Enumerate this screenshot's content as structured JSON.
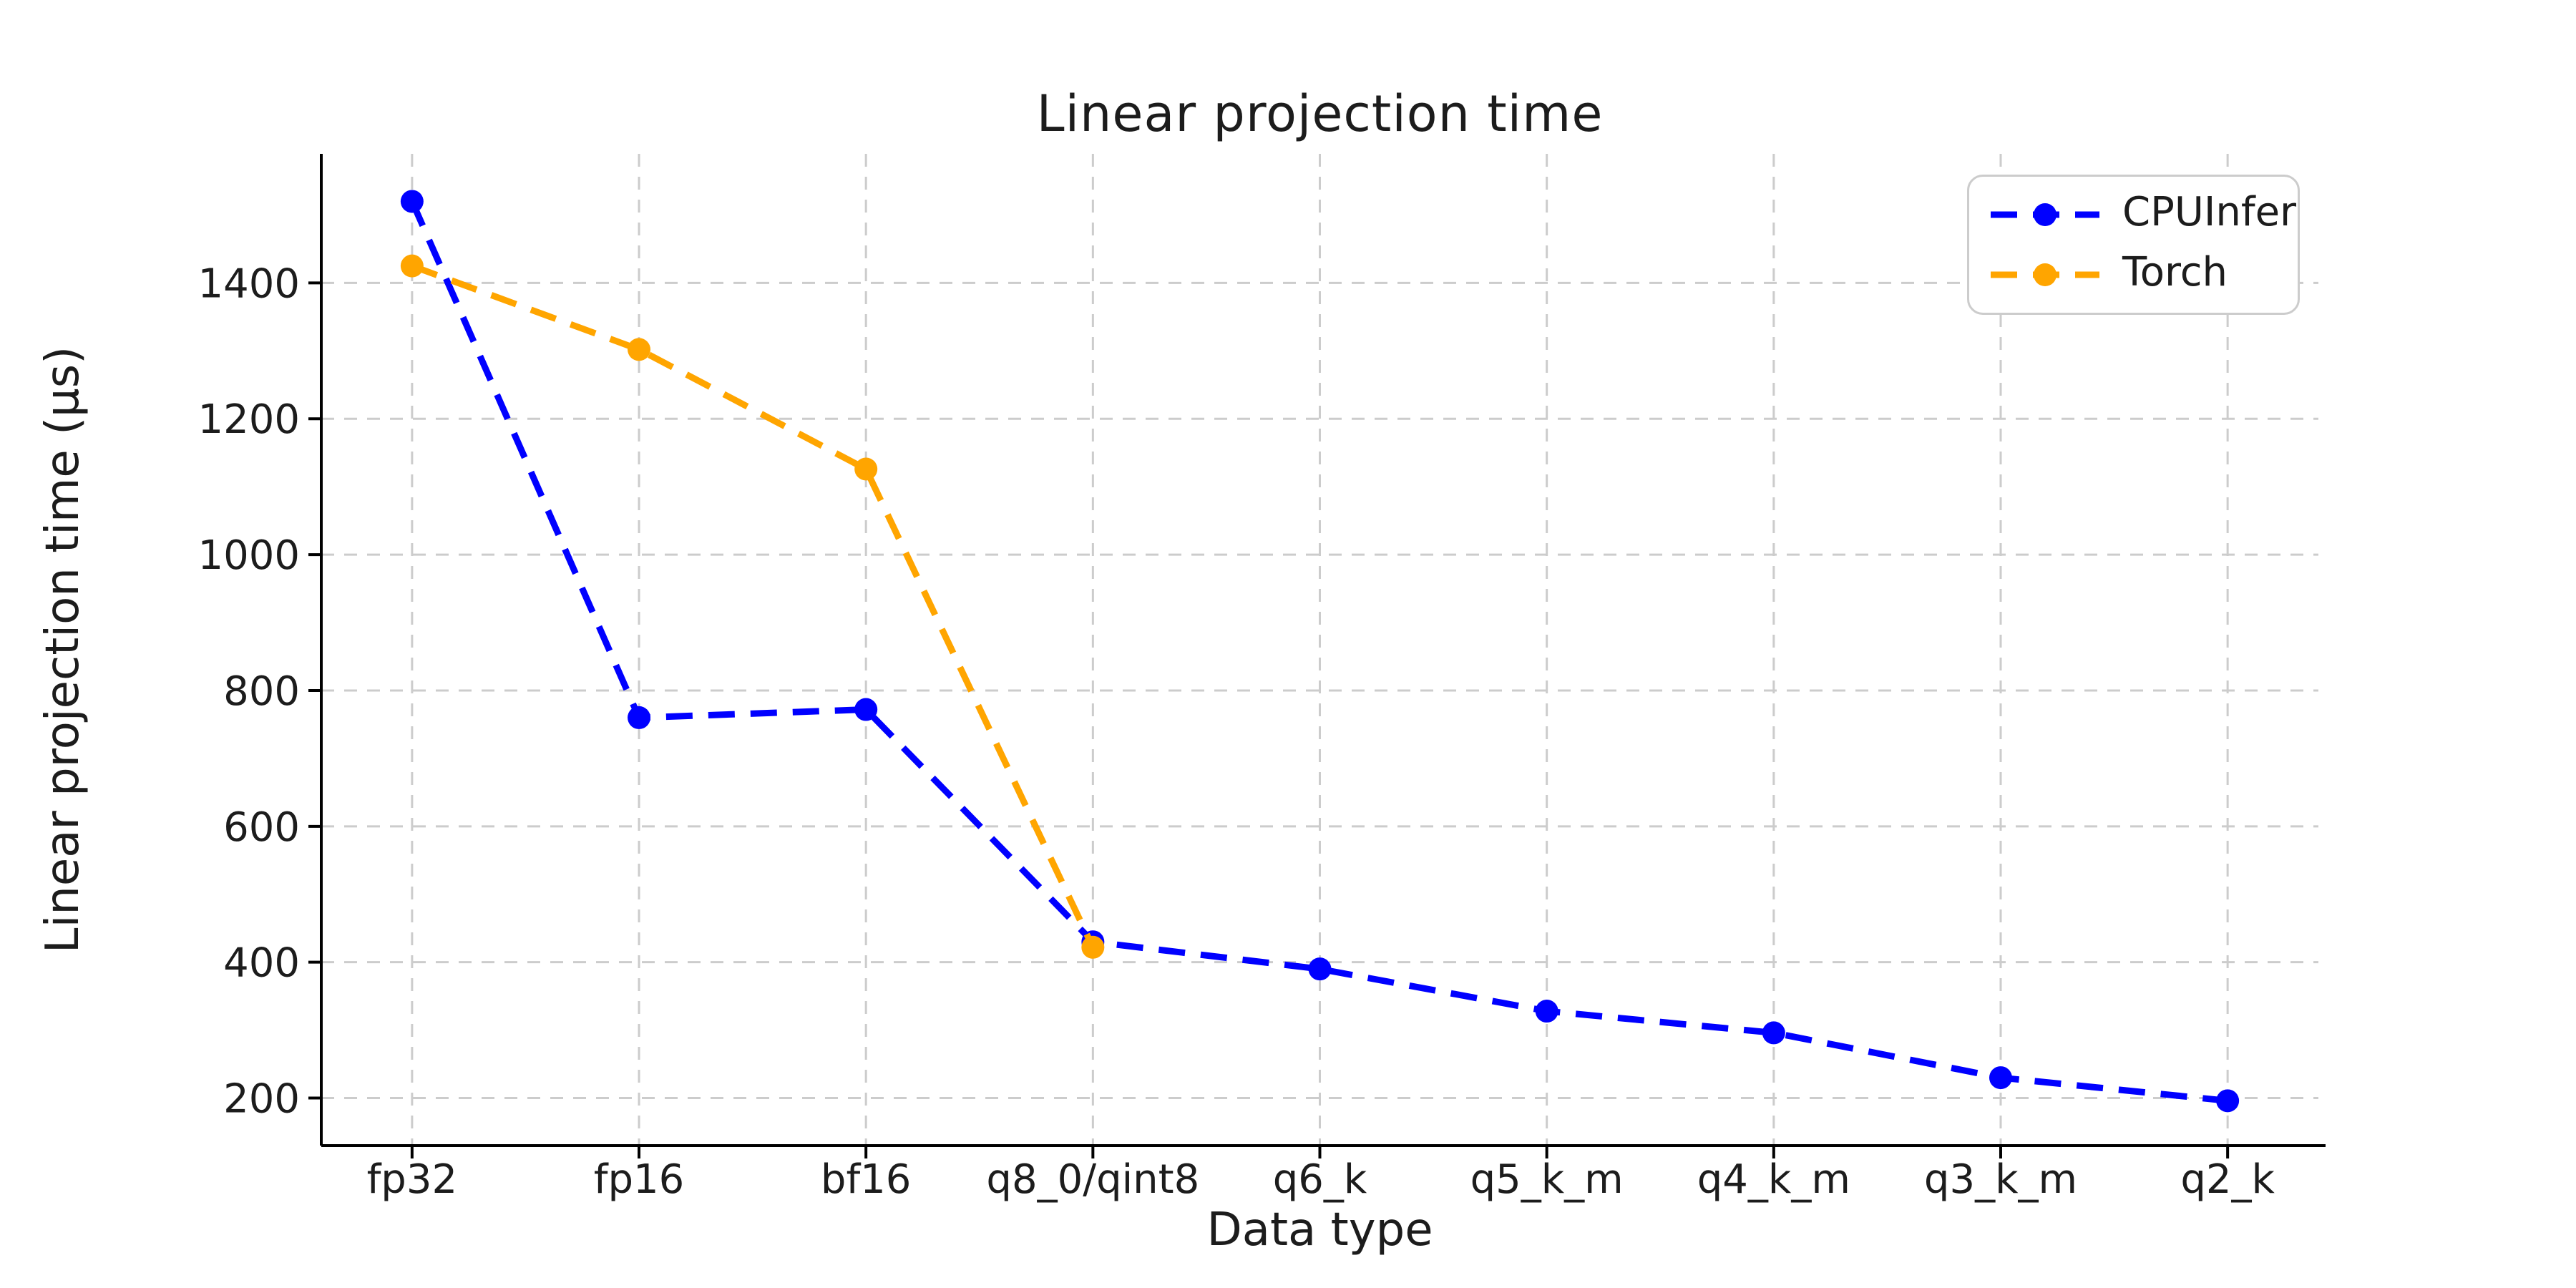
{
  "chart_data": {
    "type": "line",
    "title": "Linear projection time",
    "xlabel": "Data type",
    "ylabel": "Linear projection time (μs)",
    "categories": [
      "fp32",
      "fp16",
      "bf16",
      "q8_0/qint8",
      "q6_k",
      "q5_k_m",
      "q4_k_m",
      "q3_k_m",
      "q2_k"
    ],
    "series": [
      {
        "name": "CPUInfer",
        "color": "#0000ff",
        "values": [
          1520,
          760,
          772,
          430,
          390,
          328,
          296,
          230,
          196
        ]
      },
      {
        "name": "Torch",
        "color": "#ffa500",
        "values": [
          1425,
          1302,
          1126,
          422
        ]
      }
    ],
    "yticks": [
      200,
      400,
      600,
      800,
      1000,
      1200,
      1400
    ],
    "ylim": [
      130,
      1590
    ],
    "xlim": [
      -0.4,
      8.4
    ],
    "grid": "dashed both axes",
    "line_style": "dashed with circle markers",
    "legend_position": "upper right",
    "colors": {
      "grid": "#cccccc",
      "spine": "#000000",
      "text": "#1c1c1c",
      "background": "#ffffff"
    }
  }
}
